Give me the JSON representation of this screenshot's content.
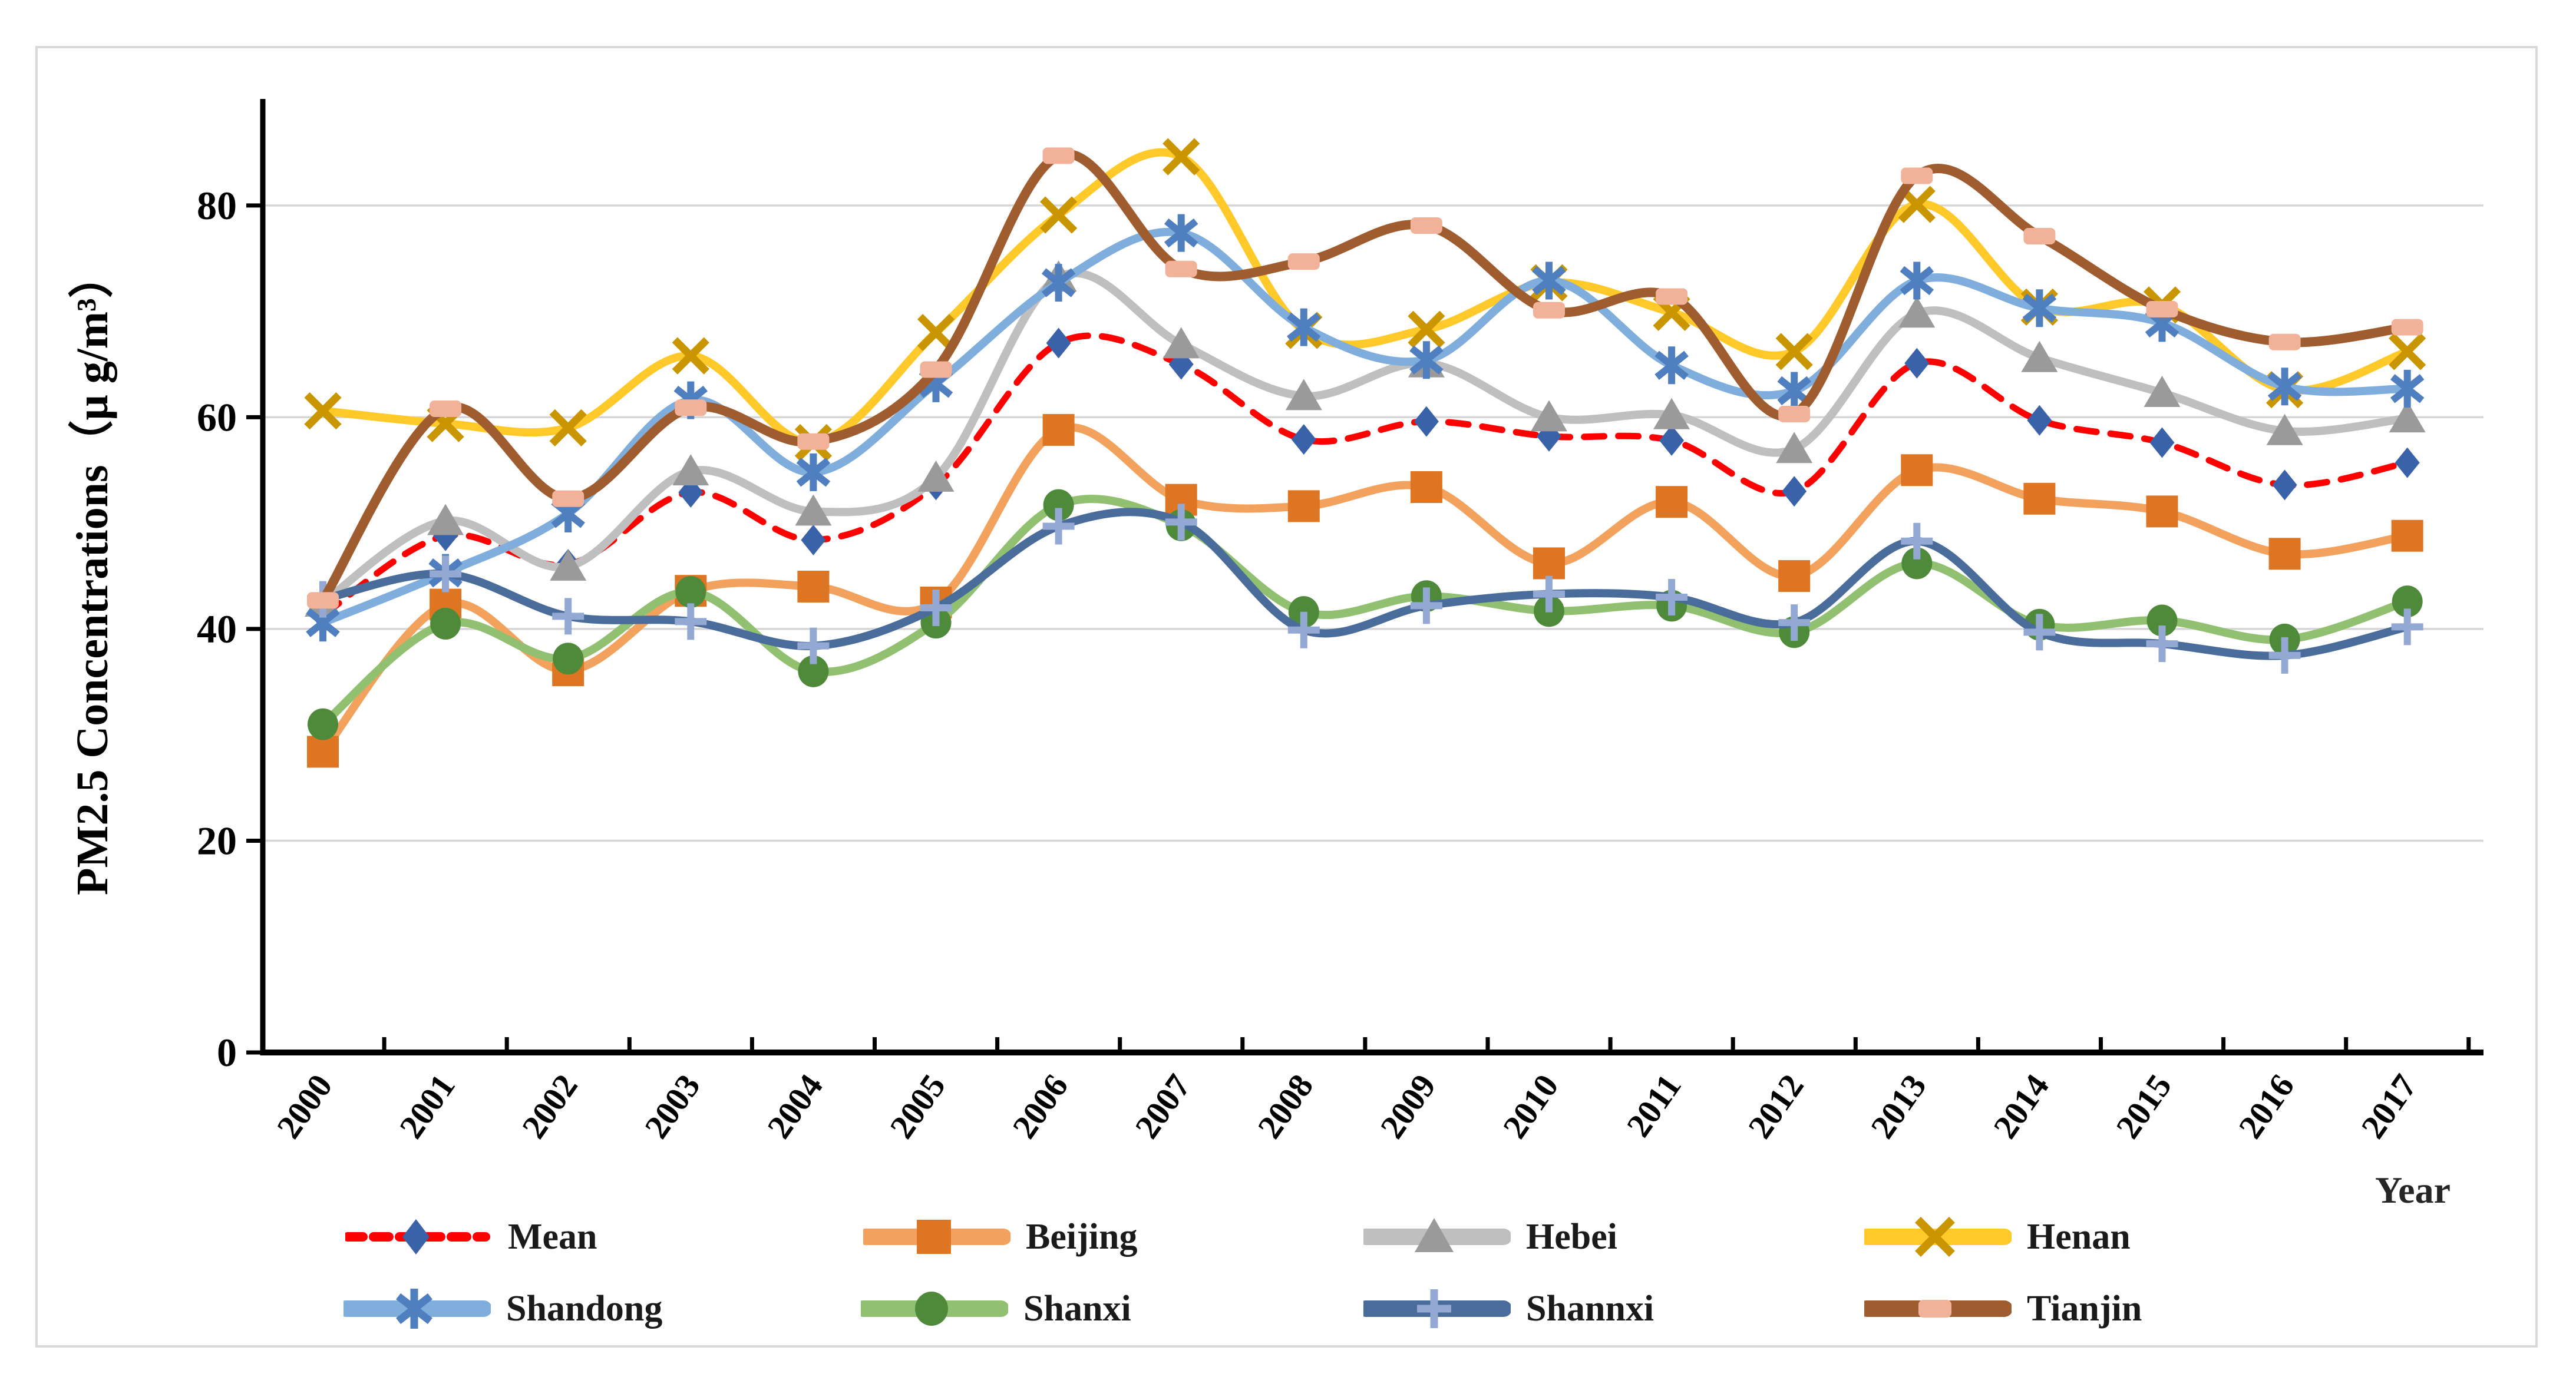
{
  "chart_data": {
    "type": "line",
    "title": "",
    "xlabel": "Year",
    "ylabel": "PM2.5 Concentrations（μ g/m³）",
    "x": [
      2000,
      2001,
      2002,
      2003,
      2004,
      2005,
      2006,
      2007,
      2008,
      2009,
      2010,
      2011,
      2012,
      2013,
      2014,
      2015,
      2016,
      2017
    ],
    "ylim": [
      0,
      90
    ],
    "yticks": [
      0,
      20,
      40,
      60,
      80
    ],
    "grid": true,
    "legend_position": "bottom",
    "colors": {
      "gridline": "#D6D6D6",
      "axis": "#000000",
      "figure_border": "#D9D9D9",
      "text": "#000000"
    },
    "series": [
      {
        "name": "Mean",
        "marker": "diamond",
        "dash": true,
        "line_color": "#FF0000",
        "marker_color": "#3A62A8",
        "values": [
          41.3,
          48.8,
          46.1,
          52.9,
          48.4,
          53.6,
          67.0,
          65.0,
          57.9,
          59.6,
          58.2,
          57.8,
          53.0,
          65.1,
          59.7,
          57.6,
          53.6,
          55.7
        ]
      },
      {
        "name": "Beijing",
        "marker": "square",
        "dash": false,
        "line_color": "#F2A25C",
        "marker_color": "#DD7522",
        "values": [
          28.4,
          42.3,
          36.1,
          43.6,
          44.0,
          42.5,
          58.8,
          52.2,
          51.6,
          53.4,
          46.2,
          52.0,
          45.0,
          55.0,
          52.3,
          51.1,
          47.1,
          48.8
        ]
      },
      {
        "name": "Hebei",
        "marker": "triangle",
        "dash": false,
        "line_color": "#BFBFBF",
        "marker_color": "#9A9A9A",
        "values": [
          42.5,
          50.2,
          45.9,
          54.9,
          51.1,
          54.3,
          73.2,
          66.9,
          62.0,
          65.1,
          60.0,
          60.2,
          57.0,
          69.8,
          65.6,
          62.3,
          58.7,
          59.9
        ]
      },
      {
        "name": "Henan",
        "marker": "xmark",
        "dash": false,
        "line_color": "#FFC929",
        "marker_color": "#C99500",
        "values": [
          60.6,
          59.4,
          59.0,
          65.8,
          57.6,
          68.0,
          79.1,
          84.6,
          68.2,
          68.3,
          72.7,
          69.9,
          66.2,
          80.1,
          70.4,
          70.6,
          62.6,
          66.2
        ]
      },
      {
        "name": "Shandong",
        "marker": "asterisk",
        "dash": false,
        "line_color": "#7FAEDC",
        "marker_color": "#4F7FBF",
        "values": [
          40.6,
          45.3,
          50.9,
          61.6,
          54.8,
          63.2,
          72.7,
          77.4,
          68.5,
          65.4,
          72.9,
          64.9,
          62.5,
          72.9,
          70.3,
          68.9,
          62.9,
          62.7
        ]
      },
      {
        "name": "Shanxi",
        "marker": "circle",
        "dash": false,
        "line_color": "#90C070",
        "marker_color": "#4F8A3A",
        "values": [
          31.0,
          40.5,
          37.2,
          43.5,
          36.0,
          40.6,
          51.7,
          49.8,
          41.6,
          43.1,
          41.7,
          42.2,
          39.7,
          46.2,
          40.4,
          40.8,
          39.0,
          42.6
        ]
      },
      {
        "name": "Shannxi",
        "marker": "plus",
        "dash": false,
        "line_color": "#4A6C9B",
        "marker_color": "#93A9D4",
        "values": [
          42.8,
          45.2,
          41.2,
          40.7,
          38.4,
          42.0,
          49.7,
          50.1,
          39.9,
          42.2,
          43.3,
          43.0,
          40.6,
          48.3,
          39.7,
          38.6,
          37.5,
          40.2
        ]
      },
      {
        "name": "Tianjin",
        "marker": "tjsquare",
        "dash": false,
        "line_color": "#9F5C2E",
        "marker_color": "#F2B199",
        "values": [
          42.7,
          60.8,
          52.3,
          60.9,
          57.7,
          64.5,
          84.7,
          74.0,
          74.7,
          78.1,
          70.1,
          71.4,
          60.3,
          82.8,
          77.1,
          70.2,
          67.1,
          68.5
        ]
      }
    ]
  }
}
